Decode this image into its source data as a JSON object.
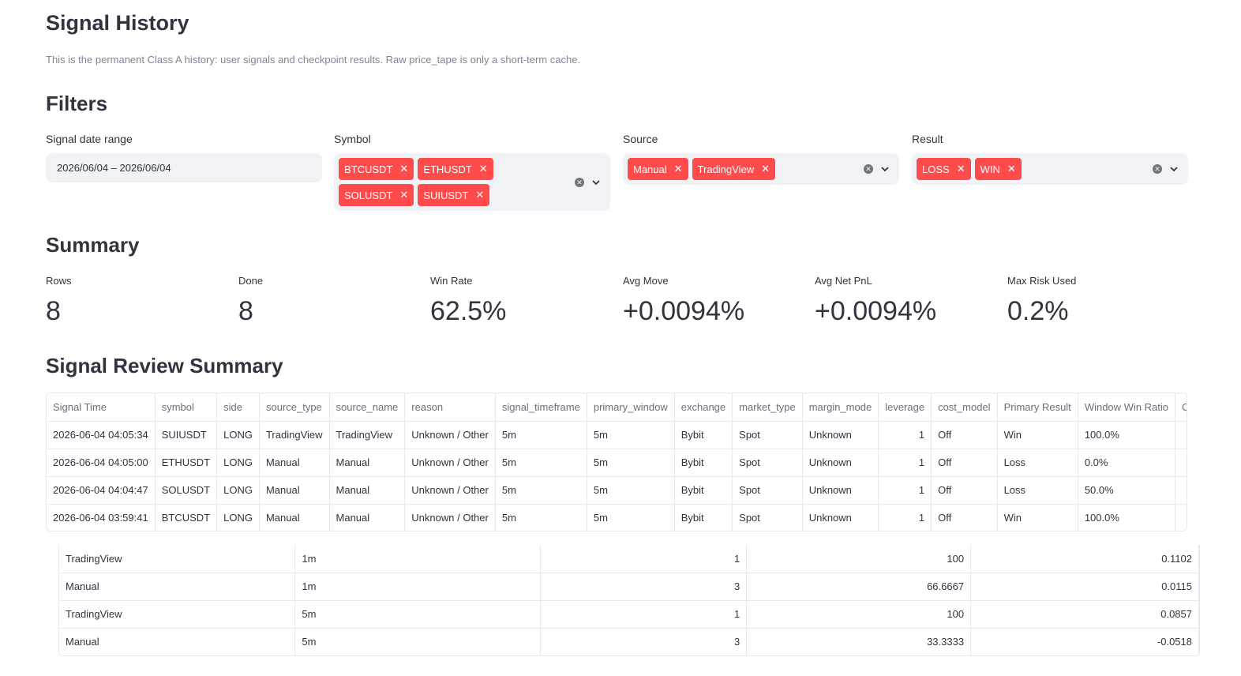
{
  "page": {
    "title": "Signal History",
    "caption": "This is the permanent Class A history: user signals and checkpoint results. Raw price_tape is only a short-term cache."
  },
  "filters": {
    "heading": "Filters",
    "date": {
      "label": "Signal date range",
      "value": "2026/06/04 – 2026/06/04"
    },
    "symbol": {
      "label": "Symbol",
      "chips": [
        "BTCUSDT",
        "ETHUSDT",
        "SOLUSDT",
        "SUIUSDT"
      ]
    },
    "source": {
      "label": "Source",
      "chips": [
        "Manual",
        "TradingView"
      ]
    },
    "result": {
      "label": "Result",
      "chips": [
        "LOSS",
        "WIN"
      ]
    }
  },
  "summary": {
    "heading": "Summary",
    "metrics": [
      {
        "label": "Rows",
        "value": "8"
      },
      {
        "label": "Done",
        "value": "8"
      },
      {
        "label": "Win Rate",
        "value": "62.5%"
      },
      {
        "label": "Avg Move",
        "value": "+0.0094%"
      },
      {
        "label": "Avg Net PnL",
        "value": "+0.0094%"
      },
      {
        "label": "Max Risk Used",
        "value": "0.2%"
      }
    ]
  },
  "review": {
    "heading": "Signal Review Summary",
    "columns": [
      "Signal Time",
      "symbol",
      "side",
      "source_type",
      "source_name",
      "reason",
      "signal_timeframe",
      "primary_window",
      "exchange",
      "market_type",
      "margin_mode",
      "leverage",
      "cost_model",
      "Primary Result",
      "Window Win Ratio",
      "C"
    ],
    "rows": [
      [
        "2026-06-04 04:05:34",
        "SUIUSDT",
        "LONG",
        "TradingView",
        "TradingView",
        "Unknown / Other",
        "5m",
        "5m",
        "Bybit",
        "Spot",
        "Unknown",
        "1",
        "Off",
        "Win",
        "100.0%",
        ""
      ],
      [
        "2026-06-04 04:05:00",
        "ETHUSDT",
        "LONG",
        "Manual",
        "Manual",
        "Unknown / Other",
        "5m",
        "5m",
        "Bybit",
        "Spot",
        "Unknown",
        "1",
        "Off",
        "Loss",
        "0.0%",
        ""
      ],
      [
        "2026-06-04 04:04:47",
        "SOLUSDT",
        "LONG",
        "Manual",
        "Manual",
        "Unknown / Other",
        "5m",
        "5m",
        "Bybit",
        "Spot",
        "Unknown",
        "1",
        "Off",
        "Loss",
        "50.0%",
        ""
      ],
      [
        "2026-06-04 03:59:41",
        "BTCUSDT",
        "LONG",
        "Manual",
        "Manual",
        "Unknown / Other",
        "5m",
        "5m",
        "Bybit",
        "Spot",
        "Unknown",
        "1",
        "Off",
        "Win",
        "100.0%",
        ""
      ]
    ]
  },
  "source_table": {
    "rows": [
      [
        "TradingView",
        "1m",
        "1",
        "100",
        "0.1102"
      ],
      [
        "Manual",
        "1m",
        "3",
        "66.6667",
        "0.0115"
      ],
      [
        "TradingView",
        "5m",
        "1",
        "100",
        "0.0857"
      ],
      [
        "Manual",
        "5m",
        "3",
        "33.3333",
        "-0.0518"
      ]
    ]
  }
}
